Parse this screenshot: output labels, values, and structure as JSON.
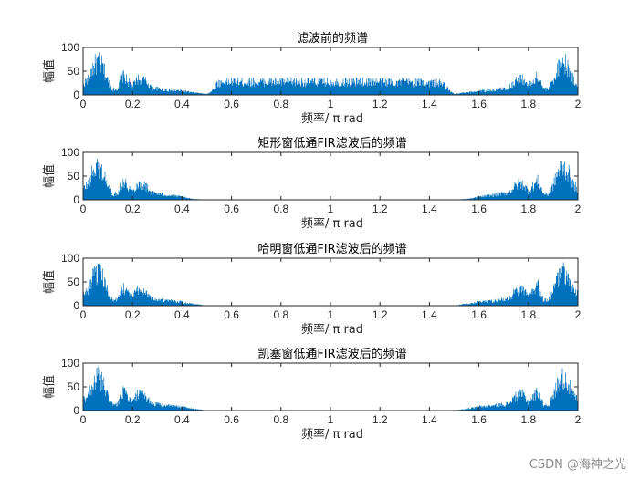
{
  "chart_data": [
    {
      "type": "area",
      "title": "滤波前的频谱",
      "xlabel": "频率/ π rad",
      "ylabel": "幅值",
      "xlim": [
        0,
        2
      ],
      "ylim": [
        0,
        100
      ],
      "xticks": [
        "0",
        "0.2",
        "0.4",
        "0.6",
        "0.8",
        "1",
        "1.2",
        "1.4",
        "1.6",
        "1.8",
        "2"
      ],
      "yticks": [
        "0",
        "50",
        "100"
      ],
      "envelope": {
        "x": [
          0,
          0.02,
          0.04,
          0.06,
          0.08,
          0.1,
          0.12,
          0.14,
          0.16,
          0.18,
          0.2,
          0.22,
          0.24,
          0.26,
          0.28,
          0.3,
          0.32,
          0.34,
          0.36,
          0.38,
          0.4,
          0.42,
          0.44,
          0.46,
          0.48,
          0.5,
          0.52,
          0.54,
          0.56,
          0.6,
          0.7,
          0.8,
          0.9,
          1.0,
          1.1,
          1.2,
          1.3,
          1.4,
          1.44,
          1.46,
          1.48,
          1.5,
          1.52,
          1.54,
          1.56,
          1.58,
          1.6,
          1.62,
          1.64,
          1.66,
          1.68,
          1.7,
          1.72,
          1.74,
          1.76,
          1.78,
          1.8,
          1.82,
          1.84,
          1.86,
          1.88,
          1.9,
          1.92,
          1.94,
          1.96,
          1.98,
          2.0
        ],
        "y": [
          30,
          45,
          80,
          95,
          80,
          40,
          15,
          18,
          55,
          40,
          25,
          45,
          45,
          35,
          20,
          18,
          16,
          14,
          13,
          12,
          12,
          9,
          7,
          6,
          4,
          3,
          10,
          32,
          35,
          37,
          37,
          37,
          37,
          37,
          37,
          37,
          37,
          35,
          33,
          30,
          12,
          3,
          4,
          6,
          7,
          9,
          12,
          12,
          13,
          14,
          16,
          18,
          20,
          35,
          45,
          45,
          25,
          40,
          55,
          18,
          15,
          40,
          80,
          95,
          80,
          45,
          30
        ]
      }
    },
    {
      "type": "area",
      "title": "矩形窗低通FIR滤波后的频谱",
      "xlabel": "频率/ π rad",
      "ylabel": "幅值",
      "xlim": [
        0,
        2
      ],
      "ylim": [
        0,
        100
      ],
      "xticks": [
        "0",
        "0.2",
        "0.4",
        "0.6",
        "0.8",
        "1",
        "1.2",
        "1.4",
        "1.6",
        "1.8",
        "2"
      ],
      "yticks": [
        "0",
        "50",
        "100"
      ],
      "envelope": {
        "x": [
          0,
          0.02,
          0.04,
          0.06,
          0.08,
          0.1,
          0.12,
          0.14,
          0.16,
          0.18,
          0.2,
          0.22,
          0.24,
          0.26,
          0.28,
          0.3,
          0.32,
          0.34,
          0.36,
          0.38,
          0.4,
          0.42,
          0.44,
          0.46,
          0.48,
          0.5,
          1.0,
          1.5,
          1.52,
          1.54,
          1.56,
          1.58,
          1.6,
          1.62,
          1.64,
          1.66,
          1.68,
          1.7,
          1.72,
          1.74,
          1.76,
          1.78,
          1.8,
          1.82,
          1.84,
          1.86,
          1.88,
          1.9,
          1.92,
          1.94,
          1.96,
          1.98,
          2.0
        ],
        "y": [
          30,
          45,
          80,
          95,
          80,
          40,
          15,
          18,
          55,
          40,
          25,
          45,
          45,
          35,
          20,
          18,
          16,
          14,
          12,
          10,
          8,
          5,
          3,
          2,
          1,
          0.5,
          0.5,
          0.5,
          1,
          2,
          3,
          5,
          8,
          10,
          12,
          14,
          16,
          18,
          20,
          35,
          45,
          45,
          25,
          40,
          55,
          18,
          15,
          40,
          80,
          95,
          80,
          45,
          30
        ]
      }
    },
    {
      "type": "area",
      "title": "哈明窗低通FIR滤波后的频谱",
      "xlabel": "频率/ π rad",
      "ylabel": "幅值",
      "xlim": [
        0,
        2
      ],
      "ylim": [
        0,
        100
      ],
      "xticks": [
        "0",
        "0.2",
        "0.4",
        "0.6",
        "0.8",
        "1",
        "1.2",
        "1.4",
        "1.6",
        "1.8",
        "2"
      ],
      "yticks": [
        "0",
        "50",
        "100"
      ],
      "envelope": {
        "x": [
          0,
          0.02,
          0.04,
          0.06,
          0.08,
          0.1,
          0.12,
          0.14,
          0.16,
          0.18,
          0.2,
          0.22,
          0.24,
          0.26,
          0.28,
          0.3,
          0.32,
          0.34,
          0.36,
          0.38,
          0.4,
          0.42,
          0.44,
          0.46,
          0.48,
          0.5,
          1.0,
          1.5,
          1.52,
          1.54,
          1.56,
          1.58,
          1.6,
          1.62,
          1.64,
          1.66,
          1.68,
          1.7,
          1.72,
          1.74,
          1.76,
          1.78,
          1.8,
          1.82,
          1.84,
          1.86,
          1.88,
          1.9,
          1.92,
          1.94,
          1.96,
          1.98,
          2.0
        ],
        "y": [
          30,
          45,
          80,
          95,
          80,
          40,
          15,
          18,
          55,
          40,
          25,
          45,
          45,
          35,
          20,
          18,
          16,
          14,
          13,
          12,
          11,
          8,
          6,
          4,
          2,
          0.5,
          0.3,
          0.5,
          2,
          4,
          6,
          8,
          11,
          12,
          13,
          14,
          16,
          18,
          20,
          35,
          45,
          45,
          25,
          40,
          55,
          18,
          15,
          40,
          80,
          95,
          80,
          45,
          30
        ]
      }
    },
    {
      "type": "area",
      "title": "凯塞窗低通FIR滤波后的频谱",
      "xlabel": "频率/ π rad",
      "ylabel": "幅值",
      "xlim": [
        0,
        2
      ],
      "ylim": [
        0,
        100
      ],
      "xticks": [
        "0",
        "0.2",
        "0.4",
        "0.6",
        "0.8",
        "1",
        "1.2",
        "1.4",
        "1.6",
        "1.8",
        "2"
      ],
      "yticks": [
        "0",
        "50",
        "100"
      ],
      "envelope": {
        "x": [
          0,
          0.02,
          0.04,
          0.06,
          0.08,
          0.1,
          0.12,
          0.14,
          0.16,
          0.18,
          0.2,
          0.22,
          0.24,
          0.26,
          0.28,
          0.3,
          0.32,
          0.34,
          0.36,
          0.38,
          0.4,
          0.42,
          0.44,
          0.46,
          0.48,
          0.5,
          1.0,
          1.5,
          1.52,
          1.54,
          1.56,
          1.58,
          1.6,
          1.62,
          1.64,
          1.66,
          1.68,
          1.7,
          1.72,
          1.74,
          1.76,
          1.78,
          1.8,
          1.82,
          1.84,
          1.86,
          1.88,
          1.9,
          1.92,
          1.94,
          1.96,
          1.98,
          2.0
        ],
        "y": [
          30,
          45,
          80,
          95,
          80,
          40,
          15,
          18,
          55,
          40,
          25,
          45,
          45,
          35,
          20,
          18,
          16,
          14,
          13,
          12,
          11,
          8,
          6,
          4,
          2,
          0.5,
          0.3,
          0.5,
          2,
          4,
          6,
          8,
          11,
          12,
          13,
          14,
          16,
          18,
          20,
          35,
          45,
          45,
          25,
          40,
          55,
          18,
          15,
          40,
          80,
          95,
          80,
          45,
          30
        ]
      }
    }
  ],
  "colors": {
    "series": "#0072bd",
    "axis": "#262626"
  },
  "watermark": "CSDN @海神之光"
}
